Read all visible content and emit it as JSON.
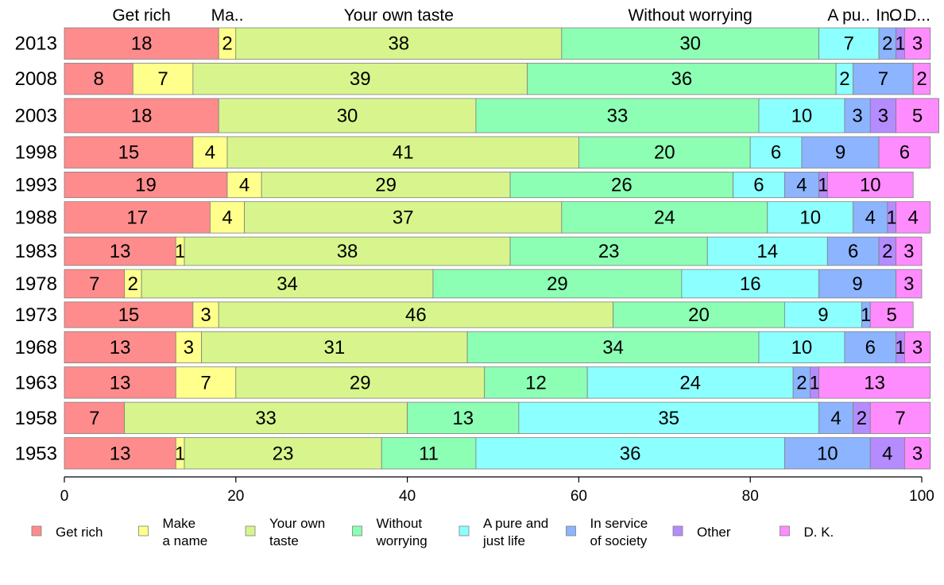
{
  "chart_data": {
    "type": "bar",
    "orientation": "horizontal",
    "stacked": true,
    "xlim": [
      0,
      100
    ],
    "xticks": [
      0,
      20,
      40,
      60,
      80,
      100
    ],
    "categories": [
      "2013",
      "2008",
      "2003",
      "1998",
      "1993",
      "1988",
      "1983",
      "1978",
      "1973",
      "1968",
      "1963",
      "1958",
      "1953"
    ],
    "top_labels": [
      "Get rich",
      "Ma..",
      "Your own taste",
      "Without worrying",
      "A pu..",
      "In..",
      "O..",
      "D..."
    ],
    "series": [
      {
        "name": "Get rich",
        "legend": [
          "Get rich"
        ],
        "color": "#ff8c8c",
        "values": [
          18,
          8,
          18,
          15,
          19,
          17,
          13,
          7,
          15,
          13,
          13,
          7,
          13
        ]
      },
      {
        "name": "Make a name",
        "legend": [
          "Make",
          "a name"
        ],
        "color": "#ffff8c",
        "values": [
          2,
          7,
          0,
          4,
          4,
          4,
          1,
          2,
          3,
          3,
          7,
          0,
          1
        ]
      },
      {
        "name": "Your own taste",
        "legend": [
          "Your own",
          "taste"
        ],
        "color": "#d7f58c",
        "values": [
          38,
          39,
          30,
          41,
          29,
          37,
          38,
          34,
          46,
          31,
          29,
          33,
          23
        ]
      },
      {
        "name": "Without worrying",
        "legend": [
          "Without",
          "worrying"
        ],
        "color": "#8cffb4",
        "values": [
          30,
          36,
          33,
          20,
          26,
          24,
          23,
          29,
          20,
          34,
          12,
          13,
          11
        ]
      },
      {
        "name": "A pure and just life",
        "legend": [
          "A pure and",
          "just life"
        ],
        "color": "#8cffff",
        "values": [
          7,
          2,
          10,
          6,
          6,
          10,
          14,
          16,
          9,
          10,
          24,
          35,
          36
        ]
      },
      {
        "name": "In service of society",
        "legend": [
          "In service",
          "of society"
        ],
        "color": "#8cb4ff",
        "values": [
          2,
          7,
          3,
          9,
          4,
          4,
          6,
          9,
          1,
          6,
          2,
          4,
          10
        ]
      },
      {
        "name": "Other",
        "legend": [
          "Other"
        ],
        "color": "#b48cff",
        "values": [
          1,
          0,
          3,
          0,
          1,
          1,
          2,
          0,
          0,
          1,
          1,
          2,
          4
        ]
      },
      {
        "name": "D. K.",
        "legend": [
          "D. K."
        ],
        "color": "#ff8cff",
        "values": [
          3,
          2,
          5,
          6,
          10,
          4,
          3,
          3,
          5,
          3,
          13,
          7,
          3
        ]
      }
    ]
  }
}
